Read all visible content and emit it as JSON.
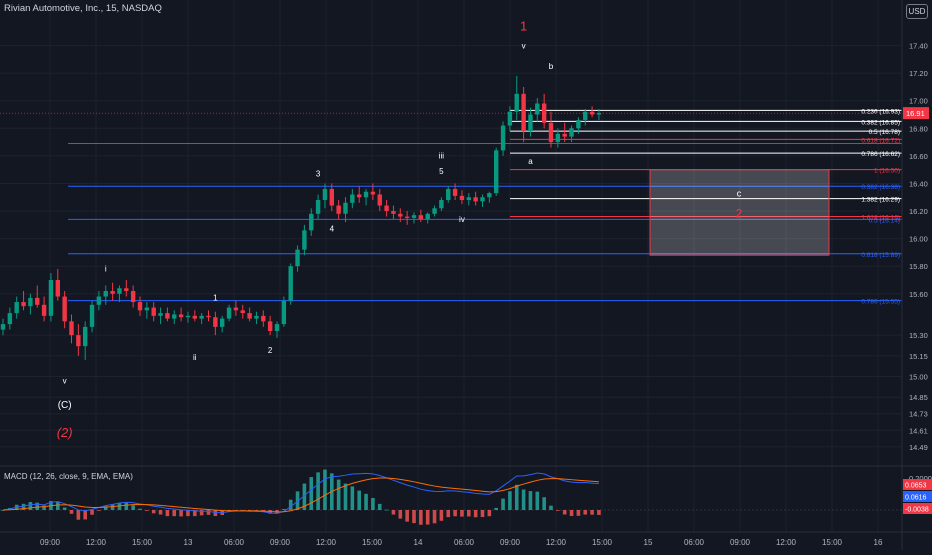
{
  "header": {
    "symbol_title": "Rivian Automotive, Inc., 15, NASDAQ",
    "currency": "USD"
  },
  "chart_data": {
    "type": "candlestick",
    "symbol": "Rivian Automotive, Inc.",
    "timeframe": "15",
    "exchange": "NASDAQ",
    "ylim": [
      14.38,
      17.6
    ],
    "y_ticks": [
      17.4,
      17.2,
      17.0,
      16.8,
      16.6,
      16.4,
      16.2,
      16.0,
      15.8,
      15.6,
      15.3,
      15.15,
      15.0,
      14.85,
      14.73,
      14.61,
      14.49
    ],
    "x_ticks": [
      "09:00",
      "12:00",
      "15:00",
      "13",
      "06:00",
      "09:00",
      "12:00",
      "15:00",
      "14",
      "06:00",
      "09:00",
      "12:00",
      "15:00",
      "15",
      "06:00",
      "09:00",
      "12:00",
      "15:00",
      "16"
    ],
    "current_price": {
      "value": 16.91,
      "label": "16.91",
      "color": "#f23645"
    },
    "price_line_color": "#f23645",
    "colors": {
      "up": "#089981",
      "down": "#f23645",
      "background": "#131722"
    },
    "candles": [
      [
        15.34,
        15.42,
        15.3,
        15.38
      ],
      [
        15.38,
        15.5,
        15.34,
        15.46
      ],
      [
        15.46,
        15.58,
        15.42,
        15.54
      ],
      [
        15.54,
        15.62,
        15.48,
        15.51
      ],
      [
        15.51,
        15.6,
        15.45,
        15.57
      ],
      [
        15.57,
        15.66,
        15.5,
        15.52
      ],
      [
        15.52,
        15.58,
        15.4,
        15.44
      ],
      [
        15.44,
        15.75,
        15.4,
        15.7
      ],
      [
        15.7,
        15.78,
        15.55,
        15.58
      ],
      [
        15.58,
        15.62,
        15.35,
        15.4
      ],
      [
        15.4,
        15.45,
        15.24,
        15.3
      ],
      [
        15.3,
        15.38,
        15.15,
        15.22
      ],
      [
        15.22,
        15.4,
        15.12,
        15.36
      ],
      [
        15.36,
        15.55,
        15.32,
        15.52
      ],
      [
        15.52,
        15.62,
        15.48,
        15.58
      ],
      [
        15.58,
        15.66,
        15.52,
        15.62
      ],
      [
        15.62,
        15.68,
        15.55,
        15.6
      ],
      [
        15.6,
        15.66,
        15.54,
        15.64
      ],
      [
        15.64,
        15.7,
        15.58,
        15.62
      ],
      [
        15.62,
        15.66,
        15.5,
        15.54
      ],
      [
        15.54,
        15.58,
        15.44,
        15.48
      ],
      [
        15.48,
        15.54,
        15.42,
        15.5
      ],
      [
        15.5,
        15.54,
        15.4,
        15.44
      ],
      [
        15.44,
        15.5,
        15.38,
        15.46
      ],
      [
        15.46,
        15.5,
        15.4,
        15.42
      ],
      [
        15.42,
        15.48,
        15.38,
        15.45
      ],
      [
        15.45,
        15.5,
        15.4,
        15.43
      ],
      [
        15.43,
        15.47,
        15.39,
        15.44
      ],
      [
        15.44,
        15.48,
        15.4,
        15.42
      ],
      [
        15.42,
        15.46,
        15.38,
        15.44
      ],
      [
        15.44,
        15.48,
        15.4,
        15.43
      ],
      [
        15.43,
        15.47,
        15.3,
        15.36
      ],
      [
        15.36,
        15.44,
        15.32,
        15.42
      ],
      [
        15.42,
        15.52,
        15.4,
        15.5
      ],
      [
        15.5,
        15.55,
        15.44,
        15.48
      ],
      [
        15.48,
        15.52,
        15.42,
        15.46
      ],
      [
        15.46,
        15.5,
        15.4,
        15.42
      ],
      [
        15.42,
        15.47,
        15.38,
        15.44
      ],
      [
        15.44,
        15.48,
        15.36,
        15.4
      ],
      [
        15.4,
        15.44,
        15.3,
        15.33
      ],
      [
        15.33,
        15.4,
        15.28,
        15.38
      ],
      [
        15.38,
        15.58,
        15.36,
        15.55
      ],
      [
        15.55,
        15.82,
        15.52,
        15.8
      ],
      [
        15.8,
        15.95,
        15.76,
        15.92
      ],
      [
        15.92,
        16.1,
        15.88,
        16.06
      ],
      [
        16.06,
        16.22,
        16.02,
        16.18
      ],
      [
        16.18,
        16.32,
        16.14,
        16.28
      ],
      [
        16.28,
        16.4,
        16.22,
        16.36
      ],
      [
        16.36,
        16.4,
        16.2,
        16.24
      ],
      [
        16.24,
        16.28,
        16.14,
        16.18
      ],
      [
        16.18,
        16.3,
        16.12,
        16.26
      ],
      [
        16.26,
        16.36,
        16.22,
        16.32
      ],
      [
        16.32,
        16.38,
        16.26,
        16.3
      ],
      [
        16.3,
        16.36,
        16.24,
        16.34
      ],
      [
        16.34,
        16.4,
        16.28,
        16.32
      ],
      [
        16.32,
        16.36,
        16.2,
        16.24
      ],
      [
        16.24,
        16.28,
        16.16,
        16.2
      ],
      [
        16.2,
        16.24,
        16.14,
        16.18
      ],
      [
        16.18,
        16.22,
        16.12,
        16.16
      ],
      [
        16.16,
        16.2,
        16.1,
        16.15
      ],
      [
        16.15,
        16.19,
        16.11,
        16.17
      ],
      [
        16.17,
        16.21,
        16.12,
        16.14
      ],
      [
        16.14,
        16.19,
        16.11,
        16.18
      ],
      [
        16.18,
        16.24,
        16.16,
        16.22
      ],
      [
        16.22,
        16.3,
        16.2,
        16.28
      ],
      [
        16.28,
        16.38,
        16.26,
        16.36
      ],
      [
        16.36,
        16.4,
        16.28,
        16.31
      ],
      [
        16.31,
        16.35,
        16.25,
        16.28
      ],
      [
        16.28,
        16.33,
        16.24,
        16.3
      ],
      [
        16.3,
        16.34,
        16.24,
        16.27
      ],
      [
        16.27,
        16.32,
        16.23,
        16.3
      ],
      [
        16.3,
        16.34,
        16.26,
        16.33
      ],
      [
        16.33,
        16.66,
        16.31,
        16.64
      ],
      [
        16.64,
        16.85,
        16.6,
        16.82
      ],
      [
        16.82,
        16.96,
        16.78,
        16.92
      ],
      [
        16.92,
        17.18,
        16.86,
        17.05
      ],
      [
        17.05,
        17.1,
        16.7,
        16.78
      ],
      [
        16.78,
        16.95,
        16.74,
        16.9
      ],
      [
        16.9,
        17.02,
        16.85,
        16.98
      ],
      [
        16.98,
        17.05,
        16.8,
        16.84
      ],
      [
        16.84,
        16.92,
        16.66,
        16.7
      ],
      [
        16.7,
        16.8,
        16.66,
        16.76
      ],
      [
        16.76,
        16.84,
        16.7,
        16.74
      ],
      [
        16.74,
        16.82,
        16.7,
        16.8
      ],
      [
        16.8,
        16.88,
        16.76,
        16.86
      ],
      [
        16.86,
        16.94,
        16.82,
        16.92
      ],
      [
        16.92,
        16.96,
        16.88,
        16.9
      ],
      [
        16.9,
        16.94,
        16.86,
        16.91
      ]
    ],
    "fib_levels": [
      {
        "label": "0.236 (16.93)",
        "value": 16.93,
        "color": "#ffffff"
      },
      {
        "label": "0.382 (16.85)",
        "value": 16.85,
        "color": "#ffffff"
      },
      {
        "label": "0.5 (16.78)",
        "value": 16.78,
        "color": "#ffffff"
      },
      {
        "label": "0.618 (16.72)",
        "value": 16.72,
        "color": "#f23645"
      },
      {
        "label": "0.786 (16.62)",
        "value": 16.62,
        "color": "#ffffff"
      },
      {
        "label": "1 (16.50)",
        "value": 16.5,
        "color": "#f23645"
      },
      {
        "label": "1.382 (16.29)",
        "value": 16.29,
        "color": "#ffffff"
      },
      {
        "label": "1.618 (16.16)",
        "value": 16.16,
        "color": "#f23645"
      }
    ],
    "blue_levels": [
      {
        "label": "",
        "value": 16.69,
        "color": "#2962ff"
      },
      {
        "label": "0.382 (16.38)",
        "value": 16.38,
        "color": "#2962ff"
      },
      {
        "label": "0.5 (16.14)",
        "value": 16.14,
        "color": "#2962ff"
      },
      {
        "label": "0.618 (15.89)",
        "value": 15.89,
        "color": "#2962ff"
      },
      {
        "label": "0.786 (15.55)",
        "value": 15.55,
        "color": "#2962ff"
      }
    ],
    "target_box": {
      "y_high": 16.5,
      "y_low": 15.88,
      "label": "c",
      "wave_label": "2"
    },
    "wave_labels": [
      {
        "text": "1",
        "x": 76,
        "y": 17.51,
        "color": "#f23645"
      },
      {
        "text": "v",
        "x": 76,
        "y": 17.38,
        "color": "#ffffff"
      },
      {
        "text": "b",
        "x": 80,
        "y": 17.23,
        "color": "#ffffff"
      },
      {
        "text": "a",
        "x": 77,
        "y": 16.54,
        "color": "#ffffff"
      },
      {
        "text": "iii",
        "x": 64,
        "y": 16.58,
        "color": "#ffffff"
      },
      {
        "text": "5",
        "x": 64,
        "y": 16.47,
        "color": "#ffffff"
      },
      {
        "text": "iv",
        "x": 67,
        "y": 16.12,
        "color": "#ffffff"
      },
      {
        "text": "3",
        "x": 46,
        "y": 16.45,
        "color": "#ffffff"
      },
      {
        "text": "4",
        "x": 48,
        "y": 16.05,
        "color": "#ffffff"
      },
      {
        "text": "i",
        "x": 15,
        "y": 15.76,
        "color": "#ffffff"
      },
      {
        "text": "1",
        "x": 31,
        "y": 15.55,
        "color": "#ffffff"
      },
      {
        "text": "ii",
        "x": 28,
        "y": 15.12,
        "color": "#ffffff"
      },
      {
        "text": "2",
        "x": 39,
        "y": 15.17,
        "color": "#ffffff"
      },
      {
        "text": "v",
        "x": 9,
        "y": 14.95,
        "color": "#ffffff"
      },
      {
        "text": "(C)",
        "x": 9,
        "y": 14.77,
        "color": "#ffffff"
      },
      {
        "text": "(2)",
        "x": 9,
        "y": 14.56,
        "color": "#f23645"
      }
    ],
    "macd": {
      "title": "MACD (12, 26, close, 9, EMA, EMA)",
      "y_ticks": [
        0.2,
        0.0
      ],
      "tick_labels": [
        "0.2000",
        "0.0000"
      ],
      "badges": [
        {
          "label": "0.0653",
          "color": "#f23645"
        },
        {
          "label": "0.0616",
          "color": "#2962ff"
        },
        {
          "label": "-0.0038",
          "color": "#f23645"
        }
      ]
    }
  }
}
